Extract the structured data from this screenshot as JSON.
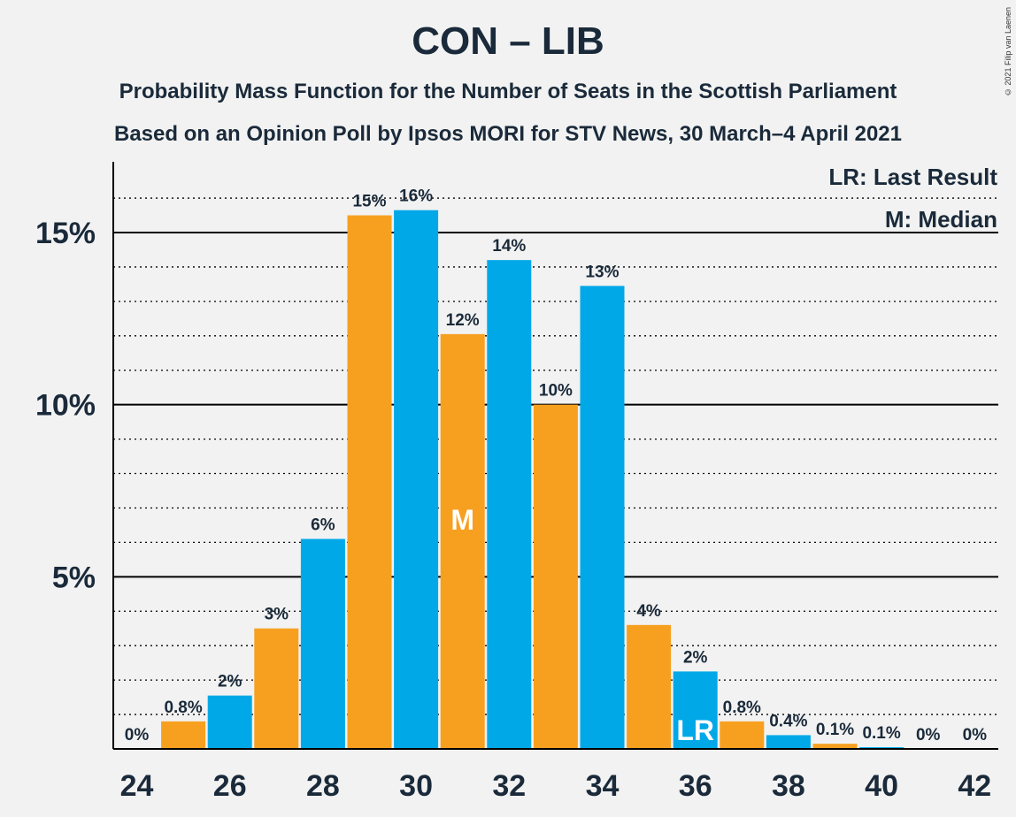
{
  "chart_data": {
    "type": "bar",
    "title": "CON – LIB",
    "subtitle": "Probability Mass Function for the Number of Seats in the Scottish Parliament",
    "subtitle2": "Based on an Opinion Poll by Ipsos MORI for STV News, 30 March–4 April 2021",
    "copyright": "© 2021 Filip van Laenen",
    "x": [
      24,
      25,
      26,
      27,
      28,
      29,
      30,
      31,
      32,
      33,
      34,
      35,
      36,
      37,
      38,
      39,
      40,
      41,
      42
    ],
    "values": [
      0,
      0.8,
      1.55,
      3.5,
      6.1,
      15.5,
      15.65,
      12.05,
      14.2,
      10.0,
      13.45,
      3.6,
      2.25,
      0.8,
      0.4,
      0.15,
      0.05,
      0,
      0
    ],
    "data_labels": [
      "0%",
      "0.8%",
      "2%",
      "3%",
      "6%",
      "15%",
      "16%",
      "12%",
      "14%",
      "10%",
      "13%",
      "4%",
      "2%",
      "0.8%",
      "0.4%",
      "0.1%",
      "0.1%",
      "0%",
      "0%"
    ],
    "colors": [
      "#00a8e8",
      "#f7a020",
      "#00a8e8",
      "#f7a020",
      "#00a8e8",
      "#f7a020",
      "#00a8e8",
      "#f7a020",
      "#00a8e8",
      "#f7a020",
      "#00a8e8",
      "#f7a020",
      "#00a8e8",
      "#f7a020",
      "#00a8e8",
      "#f7a020",
      "#00a8e8",
      "#f7a020",
      "#00a8e8"
    ],
    "x_tick_labels": [
      "24",
      "26",
      "28",
      "30",
      "32",
      "34",
      "36",
      "38",
      "40",
      "42"
    ],
    "y_ticks": [
      {
        "value": 5,
        "label": "5%"
      },
      {
        "value": 10,
        "label": "10%"
      },
      {
        "value": 15,
        "label": "15%"
      }
    ],
    "ylim": [
      0,
      17
    ],
    "grid": "solid major lines at 5% steps, dotted minor lines at 1% steps",
    "median": {
      "x": 31,
      "label": "M"
    },
    "last_result": {
      "x": 36,
      "label": "LR"
    },
    "legend": [
      "LR: Last Result",
      "M: Median"
    ],
    "legend_position": "top-right"
  }
}
